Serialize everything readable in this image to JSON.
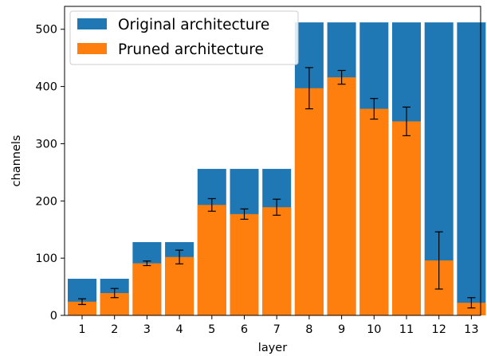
{
  "chart_data": {
    "type": "bar",
    "xlabel": "layer",
    "ylabel": "channels",
    "categories": [
      "1",
      "2",
      "3",
      "4",
      "5",
      "6",
      "7",
      "8",
      "9",
      "10",
      "11",
      "12",
      "13"
    ],
    "ylim": [
      0,
      540
    ],
    "yticks": [
      0,
      100,
      200,
      300,
      400,
      500
    ],
    "legend": "top-left",
    "grid": false,
    "series": [
      {
        "name": "Original architecture",
        "color": "#1f77b4",
        "values": [
          64,
          64,
          128,
          128,
          256,
          256,
          256,
          512,
          512,
          512,
          512,
          512,
          512
        ]
      },
      {
        "name": "Pruned architecture",
        "color": "#ff7f0e",
        "values": [
          24,
          39,
          91,
          102,
          193,
          177,
          189,
          397,
          416,
          361,
          339,
          96,
          22
        ],
        "error": [
          5,
          8,
          4,
          12,
          11,
          9,
          14,
          36,
          12,
          18,
          25,
          50,
          9
        ]
      }
    ]
  }
}
